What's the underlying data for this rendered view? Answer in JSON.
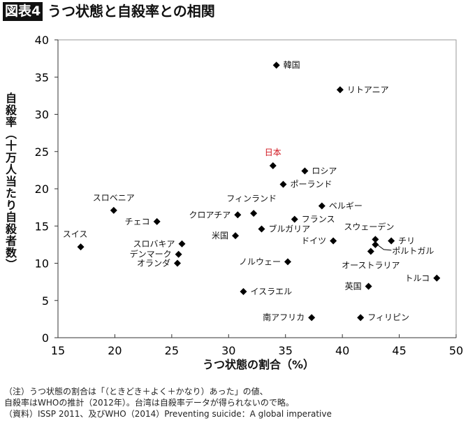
{
  "header": {
    "badge": "図表4",
    "title": "うつ状態と自殺率との相関"
  },
  "notes": [
    "（注）うつ状態の割合は「（ときどき＋よく＋かなり）あった」の値、",
    "自殺率はWHOの推計（2012年）。台湾は自殺率データが得られないので略。",
    "（資料）ISSP 2011、及びWHO（2014）Preventing suicide：A global imperative"
  ],
  "chart_data": {
    "type": "scatter",
    "title": "うつ状態と自殺率との相関",
    "xlabel": "うつ状態の割合（%）",
    "ylabel": "自殺率（十万人当たり自殺者数）",
    "xlim": [
      15,
      50
    ],
    "ylim": [
      0,
      40
    ],
    "xticks": [
      15,
      20,
      25,
      30,
      35,
      40,
      45,
      50
    ],
    "yticks": [
      0,
      5,
      10,
      15,
      20,
      25,
      30,
      35,
      40
    ],
    "grid": false,
    "marker": "diamond",
    "marker_color": "#000000",
    "highlight_color": "#d0121b",
    "points": [
      {
        "name": "韓国",
        "x": 34.2,
        "y": 36.6
      },
      {
        "name": "リトアニア",
        "x": 39.8,
        "y": 33.3
      },
      {
        "name": "日本",
        "x": 33.9,
        "y": 23.1,
        "highlight": true
      },
      {
        "name": "ロシア",
        "x": 36.7,
        "y": 22.4
      },
      {
        "name": "ポーランド",
        "x": 34.8,
        "y": 20.6
      },
      {
        "name": "フィンランド",
        "x": 32.2,
        "y": 16.7
      },
      {
        "name": "クロアチア",
        "x": 30.8,
        "y": 16.5
      },
      {
        "name": "ベルギー",
        "x": 38.2,
        "y": 17.7
      },
      {
        "name": "フランス",
        "x": 35.8,
        "y": 15.9
      },
      {
        "name": "ブルガリア",
        "x": 32.9,
        "y": 14.6
      },
      {
        "name": "米国",
        "x": 30.6,
        "y": 13.7
      },
      {
        "name": "ドイツ",
        "x": 39.2,
        "y": 13.0
      },
      {
        "name": "スウェーデン",
        "x": 42.9,
        "y": 13.2
      },
      {
        "name": "チリ",
        "x": 44.3,
        "y": 13.0
      },
      {
        "name": "ポルトガル",
        "x": 42.9,
        "y": 12.5
      },
      {
        "name": "オーストラリア",
        "x": 42.5,
        "y": 11.6
      },
      {
        "name": "ノルウェー",
        "x": 35.2,
        "y": 10.2
      },
      {
        "name": "トルコ",
        "x": 48.3,
        "y": 8.0
      },
      {
        "name": "英国",
        "x": 42.3,
        "y": 6.9
      },
      {
        "name": "イスラエル",
        "x": 31.3,
        "y": 6.2
      },
      {
        "name": "南アフリカ",
        "x": 37.3,
        "y": 2.7
      },
      {
        "name": "フィリピン",
        "x": 41.6,
        "y": 2.7
      },
      {
        "name": "スロベニア",
        "x": 19.9,
        "y": 17.1
      },
      {
        "name": "チェコ",
        "x": 23.7,
        "y": 15.6
      },
      {
        "name": "スイス",
        "x": 17.0,
        "y": 12.2
      },
      {
        "name": "スロバキア",
        "x": 25.9,
        "y": 12.6
      },
      {
        "name": "デンマーク",
        "x": 25.6,
        "y": 11.2
      },
      {
        "name": "オランダ",
        "x": 25.5,
        "y": 10.0
      }
    ]
  }
}
